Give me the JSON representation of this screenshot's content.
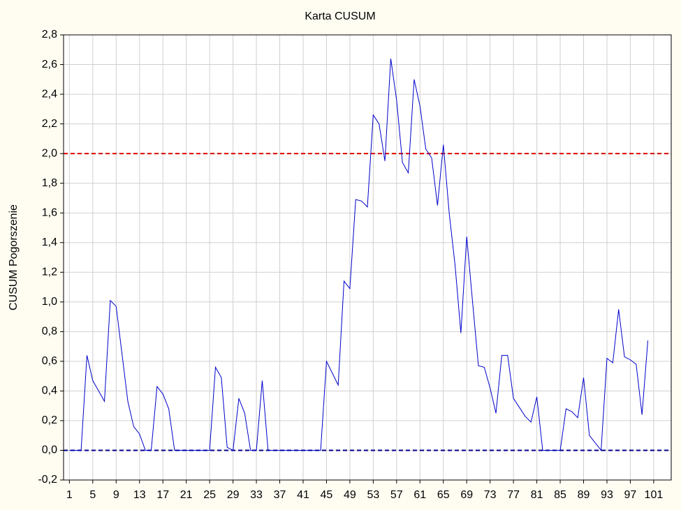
{
  "chart_data": {
    "type": "line",
    "title": "Karta CUSUM",
    "y_label": "CUSUM Pogorszenie",
    "x": [
      1,
      2,
      3,
      4,
      5,
      6,
      7,
      8,
      9,
      10,
      11,
      12,
      13,
      14,
      15,
      16,
      17,
      18,
      19,
      20,
      21,
      22,
      23,
      24,
      25,
      26,
      27,
      28,
      29,
      30,
      31,
      32,
      33,
      34,
      35,
      36,
      37,
      38,
      39,
      40,
      41,
      42,
      43,
      44,
      45,
      46,
      47,
      48,
      49,
      50,
      51,
      52,
      53,
      54,
      55,
      56,
      57,
      58,
      59,
      60,
      61,
      62,
      63,
      64,
      65,
      66,
      67,
      68,
      69,
      70,
      71,
      72,
      73,
      74,
      75,
      76,
      77,
      78,
      79,
      80,
      81,
      82,
      83,
      84,
      85,
      86,
      87,
      88,
      89,
      90,
      91,
      92,
      93,
      94,
      95,
      96,
      97,
      98,
      99,
      100
    ],
    "values": [
      0,
      0,
      0,
      0.64,
      0.47,
      0.4,
      0.33,
      1.01,
      0.97,
      0.65,
      0.33,
      0.16,
      0.11,
      0,
      0,
      0.43,
      0.38,
      0.28,
      0,
      0,
      0,
      0,
      0,
      0,
      0,
      0.56,
      0.49,
      0.02,
      0,
      0.35,
      0.25,
      0,
      0,
      0.47,
      0,
      0,
      0,
      0,
      0,
      0,
      0,
      0,
      0,
      0,
      0.6,
      0.52,
      0.44,
      1.14,
      1.09,
      1.69,
      1.68,
      1.64,
      2.26,
      2.2,
      1.95,
      2.64,
      2.36,
      1.94,
      1.87,
      2.5,
      2.32,
      2.03,
      1.97,
      1.65,
      2.06,
      1.6,
      1.25,
      0.79,
      1.44,
      1.0,
      0.57,
      0.56,
      0.42,
      0.25,
      0.64,
      0.64,
      0.35,
      0.29,
      0.23,
      0.19,
      0.36,
      0,
      0,
      0,
      0,
      0.28,
      0.26,
      0.22,
      0.49,
      0.1,
      0.05,
      0,
      0.62,
      0.59,
      0.95,
      0.63,
      0.61,
      0.58,
      0.24,
      0.74
    ],
    "color": "#0000cc",
    "reference_lines": [
      {
        "value": 2,
        "color": "#e00000"
      },
      {
        "value": 0,
        "color": "#00008b"
      }
    ],
    "xlim": [
      0,
      104
    ],
    "ylim": [
      -0.2,
      2.8
    ],
    "xticks": [
      1,
      5,
      9,
      13,
      17,
      21,
      25,
      29,
      33,
      37,
      41,
      45,
      49,
      53,
      57,
      61,
      65,
      69,
      73,
      77,
      81,
      85,
      89,
      93,
      97,
      101
    ],
    "yticks": [
      {
        "value": -0.2,
        "label": "-0,2"
      },
      {
        "value": 0,
        "label": "0,0"
      },
      {
        "value": 0.2,
        "label": "0,2"
      },
      {
        "value": 0.4,
        "label": "0,4"
      },
      {
        "value": 0.6,
        "label": "0,6"
      },
      {
        "value": 0.8,
        "label": "0,8"
      },
      {
        "value": 1.0,
        "label": "1,0"
      },
      {
        "value": 1.2,
        "label": "1,2"
      },
      {
        "value": 1.4,
        "label": "1,4"
      },
      {
        "value": 1.6,
        "label": "1,6"
      },
      {
        "value": 1.8,
        "label": "1,8"
      },
      {
        "value": 2.0,
        "label": "2,0"
      },
      {
        "value": 2.2,
        "label": "2,2"
      },
      {
        "value": 2.4,
        "label": "2,4"
      },
      {
        "value": 2.6,
        "label": "2,6"
      },
      {
        "value": 2.8,
        "label": "2,8"
      }
    ],
    "grid": true
  }
}
